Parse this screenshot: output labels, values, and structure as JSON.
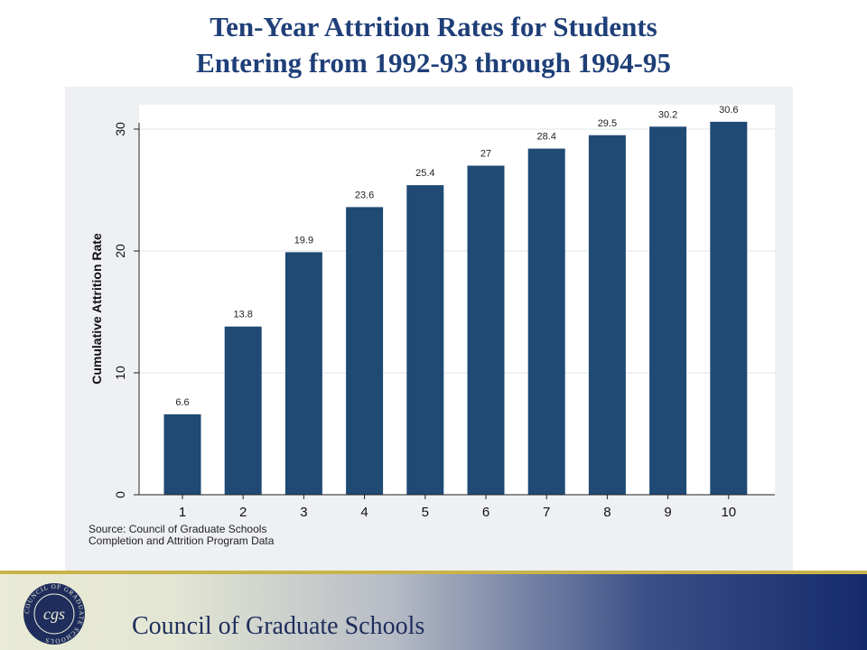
{
  "slide": {
    "title_line1": "Ten-Year Attrition Rates for Students",
    "title_line2": "Entering from 1992-93 through 1994-95"
  },
  "chart_data": {
    "type": "bar",
    "categories": [
      "1",
      "2",
      "3",
      "4",
      "5",
      "6",
      "7",
      "8",
      "9",
      "10"
    ],
    "values": [
      6.6,
      13.8,
      19.9,
      23.6,
      25.4,
      27,
      28.4,
      29.5,
      30.2,
      30.6
    ],
    "data_labels": [
      "6.6",
      "13.8",
      "19.9",
      "23.6",
      "25.4",
      "27",
      "28.4",
      "29.5",
      "30.2",
      "30.6"
    ],
    "title": "",
    "xlabel": "",
    "ylabel": "Cumulative Attrition Rate",
    "yticks": [
      0,
      10,
      20,
      30
    ],
    "ylim": [
      0,
      32
    ],
    "grid": true,
    "bar_color": "#1f4a74",
    "background_color": "#eef0f3"
  },
  "source_note": {
    "line1": "Source: Council of Graduate Schools",
    "line2": "Completion and Attrition Program Data"
  },
  "footer": {
    "org_name": "Council of Graduate Schools",
    "logo_text": "COUNCIL OF GRADUATE SCHOOLS",
    "logo_monogram": "cgs"
  }
}
